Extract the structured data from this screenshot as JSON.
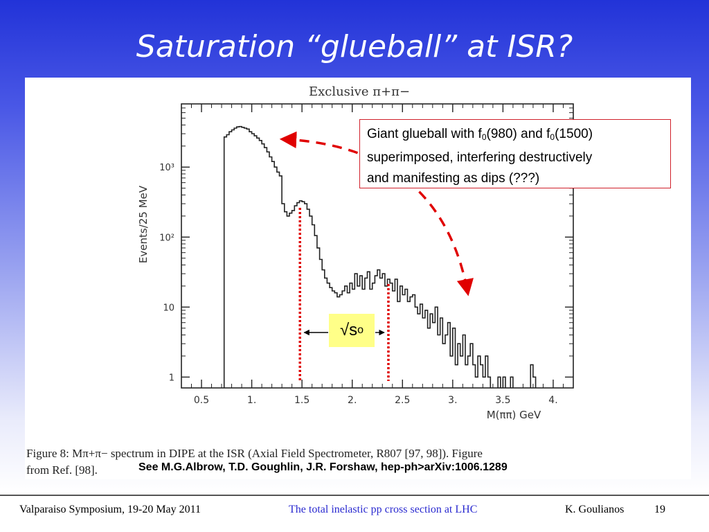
{
  "slide": {
    "title": "Saturation “glueball” at ISR?",
    "colors": {
      "title_text": "#ffffff",
      "annotation_border": "#d0202a",
      "marker": "#e00000",
      "highlight": "#ffff88",
      "footer_center": "#2a2ad0"
    }
  },
  "annotation": {
    "line1_a": "Giant glueball with f",
    "sub1": "0",
    "line1_b": "(980) and f",
    "sub2": "0",
    "line1_c": "(1500)",
    "line2": "superimposed, interfering destructively",
    "line3": "and manifesting as dips (???)"
  },
  "sqrt_label": {
    "symbol": "√s",
    "sub": "o"
  },
  "caption": {
    "line1": "Figure 8:  Mπ+π−  spectrum in  DIPE  at the ISR (Axial Field Spectrometer, R807 [97, 98]).  Figure",
    "line2": "from Ref. [98]."
  },
  "reference": "See M.G.Albrow, T.D. Goughlin, J.R. Forshaw, hep-ph>arXiv:1006.1289",
  "footer": {
    "left": "Valparaiso Symposium, 19-20 May 2011",
    "center": "The total inelastic pp cross section at LHC",
    "author": "K. Goulianos",
    "page": "19"
  },
  "chart_data": {
    "type": "line",
    "title": "Exclusive π+π−",
    "xlabel": "M(ππ)  GeV",
    "ylabel": "Events/25 MeV",
    "xlim": [
      0.3,
      4.2
    ],
    "ylim": [
      0.7,
      8000
    ],
    "log_y": true,
    "x_ticks": [
      0.5,
      1.0,
      1.5,
      2.0,
      2.5,
      3.0,
      3.5,
      4.0
    ],
    "x_tick_labels": [
      "0.5",
      "1.",
      "1.5",
      "2.",
      "2.5",
      "3.",
      "3.5",
      "4."
    ],
    "y_ticks": [
      1,
      10,
      100,
      1000
    ],
    "y_tick_labels": [
      "1",
      "10",
      "10²",
      "10³"
    ],
    "bin_width": 0.025,
    "x_start": 0.3,
    "values": [
      0,
      0,
      0,
      0,
      0,
      0,
      0,
      0,
      0,
      0,
      0,
      0,
      0,
      0,
      0,
      0,
      0,
      2700,
      2900,
      3200,
      3400,
      3600,
      3750,
      3800,
      3700,
      3600,
      3500,
      3200,
      3000,
      2800,
      2600,
      2400,
      2150,
      1900,
      1650,
      1400,
      1200,
      1000,
      850,
      750,
      300,
      230,
      200,
      220,
      240,
      280,
      310,
      330,
      320,
      300,
      250,
      200,
      150,
      105,
      70,
      48,
      34,
      26,
      22,
      19,
      17,
      16,
      14,
      15,
      17,
      20,
      16,
      22,
      18,
      30,
      20,
      28,
      18,
      26,
      32,
      18,
      22,
      28,
      34,
      26,
      30,
      20,
      25,
      22,
      17,
      25,
      12,
      20,
      15,
      18,
      12,
      14,
      15,
      10,
      8,
      11,
      7,
      9,
      5,
      8,
      6,
      10,
      4,
      7,
      3,
      4,
      6,
      2,
      5,
      1.5,
      3,
      2,
      4,
      1.5,
      2,
      3,
      1.5,
      1,
      2,
      1.5,
      1,
      2,
      1,
      0,
      0,
      0,
      1,
      0,
      1,
      0,
      0,
      1,
      0,
      0,
      0,
      0,
      0,
      0,
      0,
      1.5,
      1,
      0,
      0,
      0,
      0,
      0,
      0,
      0,
      0,
      0,
      0
    ],
    "annotations": {
      "vertical_marker_lines_x": [
        1.48,
        2.36
      ],
      "dashed_arc_from": [
        1.31,
        2500
      ],
      "dashed_arc_to": [
        3.15,
        16
      ]
    }
  }
}
